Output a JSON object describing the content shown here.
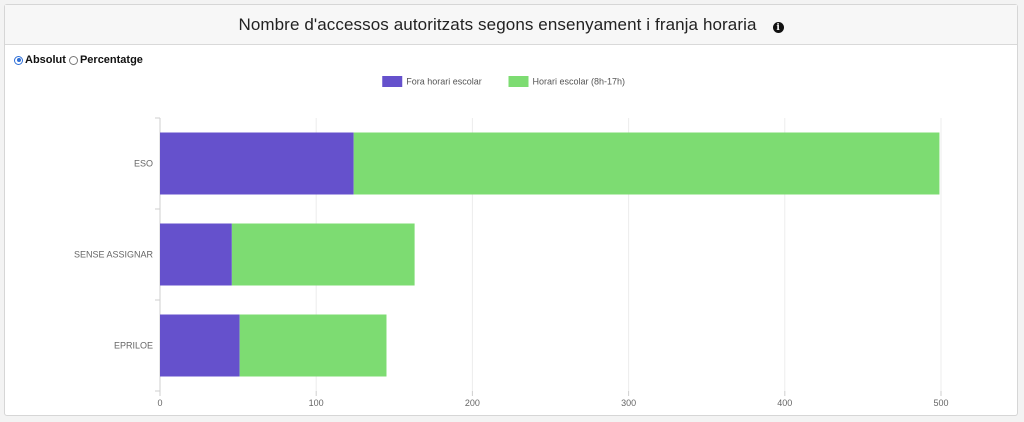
{
  "header": {
    "title": "Nombre d'accessos autoritzats segons ensenyament i franja horaria",
    "info_icon": "info-icon"
  },
  "mode_toggle": {
    "options": [
      {
        "label": "Absolut",
        "selected": true
      },
      {
        "label": "Percentatge",
        "selected": false
      }
    ]
  },
  "chart_data": {
    "type": "bar",
    "orientation": "horizontal",
    "stacked": true,
    "title": "",
    "xlabel": "",
    "ylabel": "",
    "categories": [
      "ESO",
      "SENSE ASSIGNAR",
      "EPRILOE"
    ],
    "series": [
      {
        "name": "Fora horari escolar",
        "color": "#6551cc",
        "values": [
          124,
          46,
          51
        ]
      },
      {
        "name": "Horari escolar (8h-17h)",
        "color": "#7ddc72",
        "values": [
          375,
          117,
          94
        ]
      }
    ],
    "xlim": [
      0,
      500
    ],
    "x_ticks": [
      "0",
      "100",
      "200",
      "300",
      "400",
      "500"
    ],
    "grid": true,
    "legend_position": "top-center"
  }
}
